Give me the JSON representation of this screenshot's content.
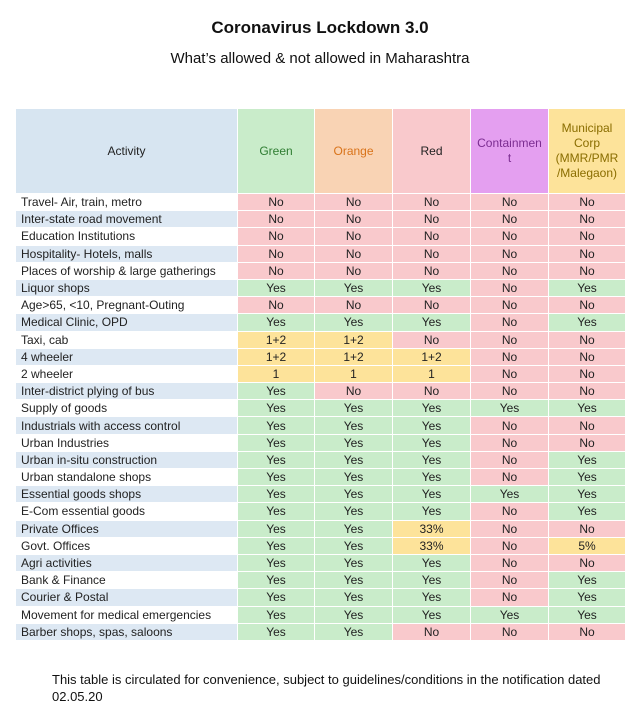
{
  "title": "Coronavirus Lockdown 3.0",
  "subtitle": "What’s allowed & not allowed in Maharashtra",
  "table": {
    "header": [
      "Activity",
      "Green",
      "Orange",
      "Red",
      "Containment",
      "Municipal Corp (MMR/PMR /Malegaon)"
    ],
    "rows": [
      [
        "Travel- Air, train, metro",
        "No",
        "No",
        "No",
        "No",
        "No"
      ],
      [
        "Inter-state road movement",
        "No",
        "No",
        "No",
        "No",
        "No"
      ],
      [
        "Education Institutions",
        "No",
        "No",
        "No",
        "No",
        "No"
      ],
      [
        "Hospitality- Hotels, malls",
        "No",
        "No",
        "No",
        "No",
        "No"
      ],
      [
        "Places of worship & large gatherings",
        "No",
        "No",
        "No",
        "No",
        "No"
      ],
      [
        "Liquor shops",
        "Yes",
        "Yes",
        "Yes",
        "No",
        "Yes"
      ],
      [
        "Age>65, <10, Pregnant-Outing",
        "No",
        "No",
        "No",
        "No",
        "No"
      ],
      [
        "Medical Clinic, OPD",
        "Yes",
        "Yes",
        "Yes",
        "No",
        "Yes"
      ],
      [
        "Taxi, cab",
        "1+2",
        "1+2",
        "No",
        "No",
        "No"
      ],
      [
        "4 wheeler",
        "1+2",
        "1+2",
        "1+2",
        "No",
        "No"
      ],
      [
        "2 wheeler",
        "1",
        "1",
        "1",
        "No",
        "No"
      ],
      [
        "Inter-district plying of bus",
        "Yes",
        "No",
        "No",
        "No",
        "No"
      ],
      [
        "Supply of goods",
        "Yes",
        "Yes",
        "Yes",
        "Yes",
        "Yes"
      ],
      [
        "Industrials with access control",
        "Yes",
        "Yes",
        "Yes",
        "No",
        "No"
      ],
      [
        "Urban Industries",
        "Yes",
        "Yes",
        "Yes",
        "No",
        "No"
      ],
      [
        "Urban in-situ construction",
        "Yes",
        "Yes",
        "Yes",
        "No",
        "Yes"
      ],
      [
        "Urban standalone shops",
        "Yes",
        "Yes",
        "Yes",
        "No",
        "Yes"
      ],
      [
        "Essential goods shops",
        "Yes",
        "Yes",
        "Yes",
        "Yes",
        "Yes"
      ],
      [
        "E-Com essential goods",
        "Yes",
        "Yes",
        "Yes",
        "No",
        "Yes"
      ],
      [
        "Private Offices",
        "Yes",
        "Yes",
        "33%",
        "No",
        "No"
      ],
      [
        "Govt. Offices",
        "Yes",
        "Yes",
        "33%",
        "No",
        "5%"
      ],
      [
        "Agri activities",
        "Yes",
        "Yes",
        "Yes",
        "No",
        "No"
      ],
      [
        "Bank & Finance",
        "Yes",
        "Yes",
        "Yes",
        "No",
        "Yes"
      ],
      [
        "Courier & Postal",
        "Yes",
        "Yes",
        "Yes",
        "No",
        "Yes"
      ],
      [
        "Movement for medical emergencies",
        "Yes",
        "Yes",
        "Yes",
        "Yes",
        "Yes"
      ],
      [
        "Barber shops, spas, saloons",
        "Yes",
        "Yes",
        "No",
        "No",
        "No"
      ]
    ]
  },
  "footnote": "This table is circulated for convenience, subject to guidelines/conditions in the notification dated 02.05.20"
}
